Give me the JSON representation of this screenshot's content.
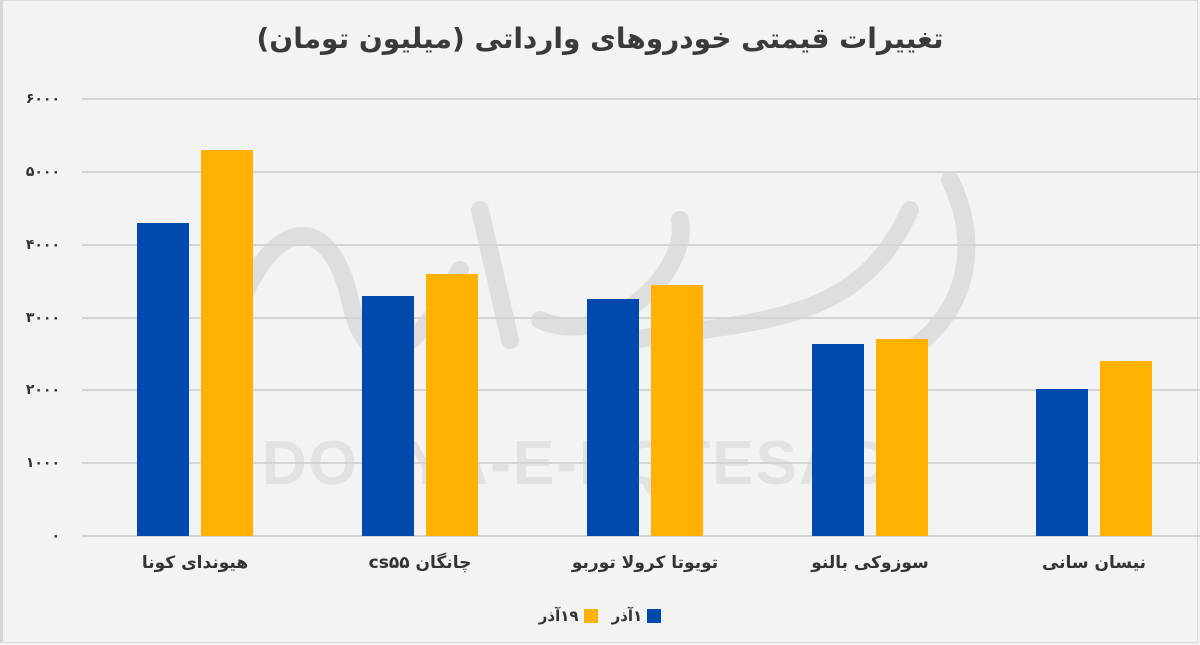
{
  "chart_data": {
    "type": "bar",
    "title": "تغییرات قیمتی خودروهای وارداتی (میلیون تومان)",
    "xlabel": "",
    "ylabel": "",
    "ylim": [
      0,
      6000
    ],
    "yticks": [
      "۰",
      "۱۰۰۰",
      "۲۰۰۰",
      "۳۰۰۰",
      "۴۰۰۰",
      "۵۰۰۰",
      "۶۰۰۰"
    ],
    "ytick_values": [
      0,
      1000,
      2000,
      3000,
      4000,
      5000,
      6000
    ],
    "grid": true,
    "legend_position": "bottom",
    "categories": [
      "هیوندای کونا",
      "چانگان cs۵۵",
      "تویوتا کرولا توربو",
      "سوزوکی بالنو",
      "نیسان سانی"
    ],
    "series": [
      {
        "name": "۱آذر",
        "color": "#004aad",
        "values": [
          4300,
          3300,
          3250,
          2640,
          2020
        ]
      },
      {
        "name": "۱۹آذر",
        "color": "#ffb000",
        "values": [
          5300,
          3600,
          3450,
          2700,
          2400
        ]
      }
    ],
    "watermark": "DONYA-E-EQTESAD"
  }
}
